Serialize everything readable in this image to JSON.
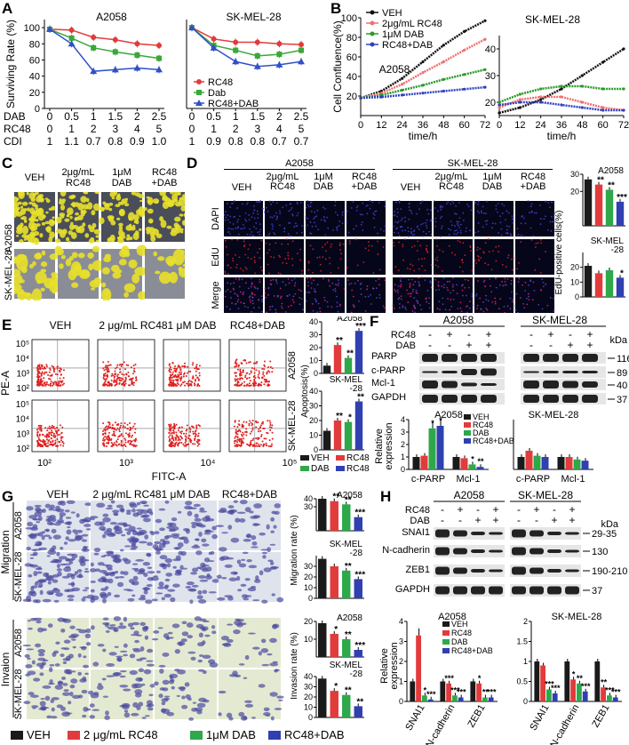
{
  "panel_labels": {
    "A": "A",
    "B": "B",
    "C": "C",
    "D": "D",
    "E": "E",
    "F": "F",
    "G": "G",
    "H": "H"
  },
  "conditions_short": [
    "VEH",
    "2μg/mL RC48",
    "1μM DAB",
    "RC48+DAB"
  ],
  "panelA": {
    "chart_data": [
      {
        "type": "line",
        "title": "A2058",
        "ylabel": "Surviving Rate (%)",
        "ylim": [
          0,
          110
        ],
        "yticks": [
          0,
          20,
          40,
          60,
          80,
          100
        ],
        "categories": [
          "0",
          "0.5",
          "1",
          "1.5",
          "2",
          "2.5"
        ],
        "series": [
          {
            "name": "RC48",
            "color": "#e23b3b",
            "values": [
              98,
              97,
              88,
              85,
              80,
              78
            ]
          },
          {
            "name": "Dab",
            "color": "#3aa83a",
            "values": [
              98,
              87,
              75,
              70,
              66,
              62
            ]
          },
          {
            "name": "RC48+DAB",
            "color": "#3050c8",
            "values": [
              98,
              80,
              46,
              48,
              50,
              48
            ]
          }
        ]
      },
      {
        "type": "line",
        "title": "SK-MEL-28",
        "ylim": [
          0,
          110
        ],
        "categories": [
          "0",
          "0.5",
          "1",
          "1.5",
          "2",
          "2.5"
        ],
        "series": [
          {
            "name": "RC48",
            "color": "#e23b3b",
            "values": [
              100,
              86,
              82,
              82,
              80,
              79
            ]
          },
          {
            "name": "Dab",
            "color": "#3aa83a",
            "values": [
              100,
              78,
              72,
              65,
              67,
              72
            ]
          },
          {
            "name": "RC48+DAB",
            "color": "#3050c8",
            "values": [
              100,
              75,
              58,
              52,
              54,
              58
            ]
          }
        ]
      }
    ],
    "dose_rows": [
      {
        "label": "DAB",
        "values": [
          "0",
          "0.5",
          "1",
          "1.5",
          "2",
          "2.5"
        ]
      },
      {
        "label": "RC48",
        "values": [
          "0",
          "1",
          "2",
          "3",
          "4",
          "5"
        ]
      },
      {
        "label": "CDI",
        "left": [
          "1",
          "1.1",
          "0.7",
          "0.8",
          "0.9",
          "1.0"
        ],
        "right": [
          "1",
          "0.9",
          "0.8",
          "0.8",
          "0.7",
          "0.7"
        ]
      }
    ],
    "legend": [
      "RC48",
      "Dab",
      "RC48+DAB"
    ]
  },
  "panelB": {
    "chart_data": [
      {
        "type": "line",
        "title": "A2058",
        "ylabel": "Cell Confluence(%)",
        "xlabel": "time/h",
        "ylim": [
          0,
          100
        ],
        "yticks": [
          20,
          40,
          60,
          80,
          100
        ],
        "xticks": [
          0,
          12,
          24,
          36,
          48,
          60,
          72
        ],
        "series": [
          {
            "name": "VEH",
            "color": "#111111",
            "x": [
              0,
              12,
              24,
              36,
              48,
              60,
              72
            ],
            "values": [
              18,
              25,
              38,
              55,
              72,
              86,
              97
            ]
          },
          {
            "name": "2μg/mL RC48",
            "color": "#f07070",
            "x": [
              0,
              12,
              24,
              36,
              48,
              60,
              72
            ],
            "values": [
              18,
              23,
              32,
              44,
              55,
              67,
              78
            ]
          },
          {
            "name": "1μM DAB",
            "color": "#2a9a2a",
            "x": [
              0,
              12,
              24,
              36,
              48,
              60,
              72
            ],
            "values": [
              18,
              21,
              26,
              31,
              37,
              42,
              47
            ]
          },
          {
            "name": "RC48+DAB",
            "color": "#3040c0",
            "x": [
              0,
              12,
              24,
              36,
              48,
              60,
              72
            ],
            "values": [
              18,
              19,
              21,
              23,
              25,
              27,
              29
            ]
          }
        ]
      },
      {
        "type": "line",
        "title": "SK-MEL-28",
        "xlabel": "time/h",
        "ylim": [
          15,
          45
        ],
        "yticks": [
          20,
          30,
          40
        ],
        "xticks": [
          0,
          12,
          24,
          36,
          48,
          60,
          72
        ],
        "series": [
          {
            "name": "VEH",
            "color": "#111111",
            "x": [
              0,
              12,
              24,
              36,
              48,
              60,
              72
            ],
            "values": [
              16,
              18,
              21,
              25,
              30,
              35,
              40
            ]
          },
          {
            "name": "2μg/mL RC48",
            "color": "#f07070",
            "x": [
              0,
              12,
              24,
              36,
              48,
              60,
              72
            ],
            "values": [
              18,
              21,
              22,
              22,
              20,
              18,
              17
            ]
          },
          {
            "name": "1μM DAB",
            "color": "#2a9a2a",
            "x": [
              0,
              12,
              24,
              36,
              48,
              60,
              72
            ],
            "values": [
              20,
              23,
              25,
              26,
              26,
              25,
              25
            ]
          },
          {
            "name": "RC48+DAB",
            "color": "#3040c0",
            "x": [
              0,
              12,
              24,
              36,
              48,
              60,
              72
            ],
            "values": [
              19,
              20,
              20,
              19,
              18,
              17,
              17
            ]
          }
        ]
      }
    ]
  },
  "panelC": {
    "columns": [
      "VEH",
      "2μg/mL\nRC48",
      "1μM\nDAB",
      "RC48\n+DAB"
    ],
    "rows": [
      "A2058",
      "SK-MEL-28"
    ]
  },
  "panelD": {
    "groups": [
      "A2058",
      "SK-MEL-28"
    ],
    "columns": [
      "VEH",
      "2μg/mL\nRC48",
      "1μM\nDAB",
      "RC48\n+DAB"
    ],
    "rows": [
      "DAPI",
      "EdU",
      "Merge"
    ],
    "chart_data": [
      {
        "type": "bar",
        "title": "A2058",
        "ylabel": "EdU-positive cells(%)",
        "ylim": [
          0,
          30
        ],
        "yticks": [
          20,
          30
        ],
        "categories": [
          "VEH",
          "RC48",
          "DAB",
          "RC48+DAB"
        ],
        "values": [
          27,
          24,
          21,
          14
        ],
        "sig": [
          "",
          "**",
          "**",
          "***"
        ]
      },
      {
        "type": "bar",
        "title": "SK-MEL\n-28",
        "ylim": [
          0,
          30
        ],
        "yticks": [
          0,
          10,
          20
        ],
        "categories": [
          "VEH",
          "RC48",
          "DAB",
          "RC48+DAB"
        ],
        "values": [
          21,
          16,
          18,
          13
        ],
        "sig": [
          "",
          "",
          "",
          "*"
        ]
      }
    ]
  },
  "panelE": {
    "columns": [
      "VEH",
      "2 μg/mL RC48",
      "1 μM DAB",
      "RC48+DAB"
    ],
    "rows": [
      "A2058",
      "SK-MEL-28"
    ],
    "ylabel": "PE-A",
    "xlabel": "FITC-A",
    "xticks": [
      "10²",
      "10³",
      "10⁴",
      "10⁵"
    ],
    "yticks": [
      "10⁵",
      "10⁴",
      "10³",
      "10²",
      "10⁵",
      "10⁴",
      "10³",
      "10²"
    ],
    "chart_data": [
      {
        "type": "bar",
        "title": "A2058",
        "ylabel": "Apoptosis(%)",
        "ylim": [
          0,
          40
        ],
        "yticks": [
          0,
          10,
          20,
          30,
          40
        ],
        "categories": [
          "VEH",
          "RC48",
          "DAB",
          "RC48+DAB"
        ],
        "values": [
          6,
          22,
          12,
          33
        ],
        "sig": [
          "",
          "**",
          "**",
          "***"
        ]
      },
      {
        "type": "bar",
        "title": "SK-MEL\n-28",
        "ylim": [
          0,
          40
        ],
        "yticks": [
          0,
          10,
          20,
          30,
          40
        ],
        "categories": [
          "VEH",
          "RC48",
          "DAB",
          "RC48+DAB"
        ],
        "values": [
          13,
          20,
          19,
          33
        ],
        "sig": [
          "",
          "**",
          "*",
          "**"
        ]
      }
    ],
    "legend": [
      "VEH",
      "RC48",
      "DAB",
      "RC48+DAB"
    ]
  },
  "panelF": {
    "groups": [
      "A2058",
      "SK-MEL-28"
    ],
    "treat_rows": [
      {
        "label": "RC48",
        "signs": [
          "-",
          "+",
          "-",
          "+"
        ]
      },
      {
        "label": "DAB",
        "signs": [
          "-",
          "-",
          "+",
          "+"
        ]
      }
    ],
    "proteins": [
      "PARP",
      "c-PARP",
      "Mcl-1",
      "GAPDH"
    ],
    "kda_label": "kDa",
    "kda": [
      "116",
      "89",
      "40",
      "37"
    ],
    "chart_data": [
      {
        "type": "bar",
        "title": "A2058",
        "ylabel": "Relative\nexpression",
        "ylim": [
          0,
          4
        ],
        "yticks": [
          0,
          1,
          2,
          3,
          4
        ],
        "categories": [
          "c-PARP",
          "Mcl-1"
        ],
        "series": [
          {
            "name": "VEH",
            "values": [
              1,
              1
            ]
          },
          {
            "name": "RC48",
            "values": [
              1.1,
              0.9
            ]
          },
          {
            "name": "DAB",
            "values": [
              3.3,
              0.4
            ]
          },
          {
            "name": "RC48+DAB",
            "values": [
              3.5,
              0.2
            ]
          }
        ],
        "sig": [
          [
            "",
            "",
            "*",
            "*"
          ],
          [
            "",
            "",
            "*",
            "**"
          ]
        ]
      },
      {
        "type": "bar",
        "title": "SK-MEL-28",
        "ylim": [
          0,
          4
        ],
        "categories": [
          "c-PARP",
          "Mcl-1"
        ],
        "series": [
          {
            "name": "VEH",
            "values": [
              1,
              1
            ]
          },
          {
            "name": "RC48",
            "values": [
              1.5,
              1
            ]
          },
          {
            "name": "DAB",
            "values": [
              1.1,
              0.8
            ]
          },
          {
            "name": "RC48+DAB",
            "values": [
              1.0,
              0.7
            ]
          }
        ]
      }
    ]
  },
  "panelG": {
    "columns": [
      "VEH",
      "2 μg/mL RC48",
      "1 μM DAB",
      "RC48+DAB"
    ],
    "sections": [
      "Migration",
      "Invaion"
    ],
    "rows": [
      "A2058",
      "SK-MEL-28",
      "A2058",
      "SK-MEL-28"
    ],
    "chart_data": [
      {
        "type": "bar",
        "title": "A2058",
        "ylabel": "Migration rate (%)",
        "ylim": [
          0,
          40
        ],
        "yticks": [
          30,
          40
        ],
        "categories": [
          "VEH",
          "RC48",
          "DAB",
          "RC48+DAB"
        ],
        "values": [
          40,
          37,
          33,
          17
        ],
        "sig": [
          "",
          "**",
          "**",
          "***"
        ]
      },
      {
        "type": "bar",
        "title": "SK-MEL\n-28",
        "ylim": [
          0,
          40
        ],
        "yticks": [
          0,
          10,
          20,
          30
        ],
        "categories": [
          "VEH",
          "RC48",
          "DAB",
          "RC48+DAB"
        ],
        "values": [
          37,
          30,
          26,
          18
        ],
        "sig": [
          "",
          "",
          "**",
          "***"
        ]
      },
      {
        "type": "bar",
        "title": "A2058",
        "ylabel": "Invasion rate (%)",
        "ylim": [
          0,
          20
        ],
        "yticks": [
          10,
          20
        ],
        "categories": [
          "VEH",
          "RC48",
          "DAB",
          "RC48+DAB"
        ],
        "values": [
          19,
          13,
          10,
          4
        ],
        "sig": [
          "",
          "*",
          "**",
          "***"
        ]
      },
      {
        "type": "bar",
        "title": "SK-MEL\n-28",
        "ylim": [
          0,
          40
        ],
        "yticks": [
          0,
          10,
          20,
          30,
          40
        ],
        "categories": [
          "VEH",
          "RC48",
          "DAB",
          "RC48+DAB"
        ],
        "values": [
          38,
          26,
          22,
          11
        ],
        "sig": [
          "",
          "*",
          "**",
          "**"
        ]
      }
    ],
    "legend": [
      "VEH",
      "2 μg/mL RC48",
      "1μM DAB",
      "RC48+DAB"
    ]
  },
  "panelH": {
    "groups": [
      "A2058",
      "SK-MEL-28"
    ],
    "treat_rows": [
      {
        "label": "RC48",
        "signs": [
          "-",
          "+",
          "-",
          "+"
        ]
      },
      {
        "label": "DAB",
        "signs": [
          "-",
          "-",
          "+",
          "+"
        ]
      }
    ],
    "proteins": [
      "SNAI1",
      "N-cadherin",
      "ZEB1",
      "GAPDH"
    ],
    "kda_label": "kDa",
    "kda": [
      "29-35",
      "130",
      "190-210",
      "37"
    ],
    "chart_data": [
      {
        "type": "bar",
        "title": "A2058",
        "ylabel": "Relative\nexpression",
        "ylim": [
          0,
          4
        ],
        "yticks": [
          0,
          1,
          2,
          3,
          4
        ],
        "categories": [
          "SNAI1",
          "N-cadherin",
          "ZEB1"
        ],
        "series": [
          {
            "name": "VEH",
            "values": [
              1,
              1,
              1
            ]
          },
          {
            "name": "RC48",
            "values": [
              3.3,
              0.9,
              0.9
            ]
          },
          {
            "name": "DAB",
            "values": [
              0.3,
              0.3,
              0.2
            ]
          },
          {
            "name": "RC48+DAB",
            "values": [
              0.1,
              0.2,
              0.2
            ]
          }
        ],
        "sig": [
          [
            "",
            "",
            "*",
            "***"
          ],
          [
            "",
            "***",
            "***",
            "***"
          ],
          [
            "",
            "*",
            "**",
            "***"
          ]
        ]
      },
      {
        "type": "bar",
        "title": "SK-MEL-28",
        "ylim": [
          0,
          2
        ],
        "yticks": [
          0,
          0.5,
          1.0,
          1.5,
          2.0
        ],
        "categories": [
          "SNAI1",
          "N-cadherin",
          "ZEB1"
        ],
        "series": [
          {
            "name": "VEH",
            "values": [
              1,
              1,
              1
            ]
          },
          {
            "name": "RC48",
            "values": [
              0.9,
              0.55,
              0.35
            ]
          },
          {
            "name": "DAB",
            "values": [
              0.3,
              0.45,
              0.15
            ]
          },
          {
            "name": "RC48+DAB",
            "values": [
              0.2,
              0.25,
              0.1
            ]
          }
        ],
        "sig": [
          [
            "",
            "",
            "***",
            "***"
          ],
          [
            "",
            "*",
            "**",
            "***"
          ],
          [
            "",
            "**",
            "***",
            "***"
          ]
        ]
      }
    ],
    "legend": [
      "VEH",
      "RC48",
      "DAB",
      "RC48+DAB"
    ]
  },
  "colors": {
    "veh": "#1a1a1a",
    "rc48": "#e23b3b",
    "dab": "#2ea84a",
    "combo": "#3040b0"
  }
}
